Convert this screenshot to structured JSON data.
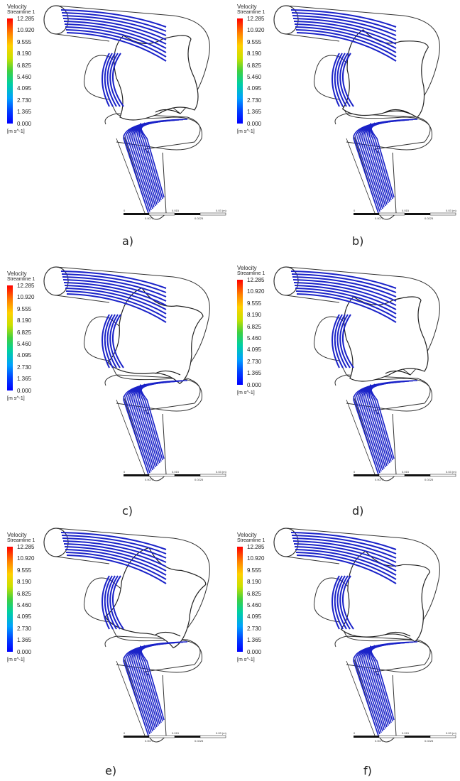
{
  "legend": {
    "title": "Velocity",
    "subtitle": "Streamline 1",
    "ticks": [
      "12.285",
      "10.920",
      "9.555",
      "8.190",
      "6.825",
      "5.460",
      "4.095",
      "2.730",
      "1.365",
      "0.000"
    ],
    "units": "[m s^-1]"
  },
  "scale_bar": {
    "top_labels": [
      "0",
      "0.015",
      "0.03 (m)"
    ],
    "bottom_labels": [
      "0.0075",
      "0.0225"
    ]
  },
  "streamline_color": "#1a22c8",
  "captions": [
    "a)",
    "b)",
    "c)",
    "d)",
    "e)",
    "f)"
  ]
}
